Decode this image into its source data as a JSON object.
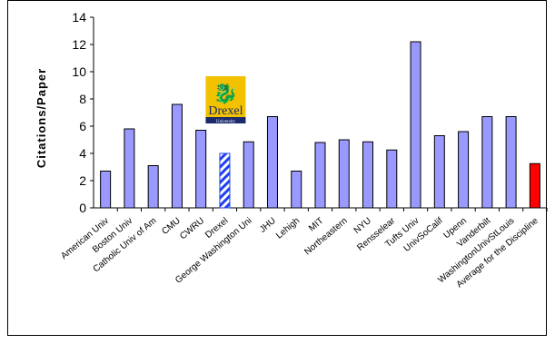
{
  "chart_data": {
    "type": "bar",
    "title": "",
    "xlabel": "",
    "ylabel": "Citations/Paper",
    "ylim": [
      0,
      14
    ],
    "yticks": [
      0,
      2,
      4,
      6,
      8,
      10,
      12,
      14
    ],
    "grid": false,
    "legend": "none",
    "categories": [
      "American Univ",
      "Boston Univ",
      "Catholic Univ of Am",
      "CMU",
      "CWRU",
      "Drexel",
      "George Washington Uni",
      "JHU",
      "Lehigh",
      "MIT",
      "Northeastern",
      "NYU",
      "Rensselear",
      "Tufts Univ",
      "UnivSoCalif",
      "Upenn",
      "Vanderbilt",
      "WashingtonUnivStLouis",
      "Average for the Discipline"
    ],
    "values": [
      2.7,
      5.8,
      3.1,
      7.6,
      5.7,
      4.0,
      4.85,
      6.7,
      2.7,
      4.8,
      5.0,
      4.85,
      4.25,
      12.2,
      5.3,
      5.6,
      6.7,
      6.7,
      3.25
    ],
    "colors": {
      "default": "#9999ff",
      "highlight_stripe": "#1f3ff0",
      "average": "#ff0000",
      "logo_bg": "#f2c100",
      "logo_text": "#1a2a6c"
    },
    "highlight": "Drexel",
    "average_category": "Average for the Discipline",
    "logo": {
      "name": "Drexel",
      "sub": "University",
      "icon": "dragon-icon"
    }
  }
}
